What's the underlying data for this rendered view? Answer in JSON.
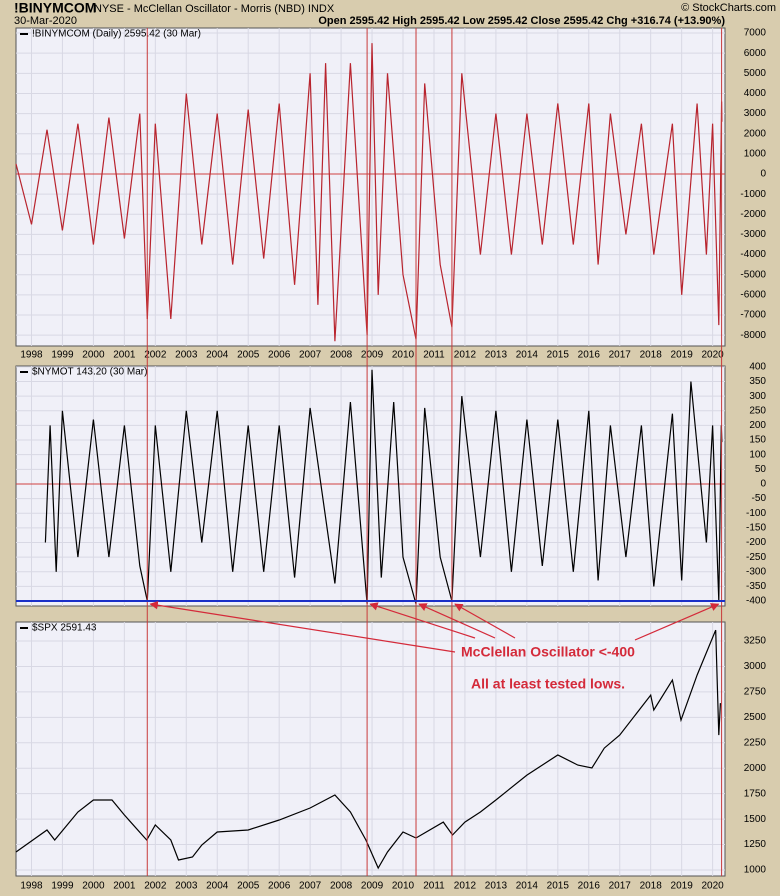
{
  "header": {
    "symbol": "!BINYMCOM",
    "description": "NYSE - McClellan Oscillator - Morris (NBD) INDX",
    "date": "30-Mar-2020",
    "stats": "Open 2595.42 High 2595.42 Low 2595.42 Close 2595.42 Chg +316.74 (+13.90%)",
    "copyright": "© StockCharts.com"
  },
  "chart_data": [
    {
      "type": "line",
      "xlim": [
        1997.5,
        2020.4
      ],
      "ylim": [
        -8540,
        7250
      ],
      "xticks": [
        1998,
        1999,
        2000,
        2001,
        2002,
        2003,
        2004,
        2005,
        2006,
        2007,
        2008,
        2009,
        2010,
        2011,
        2012,
        2013,
        2014,
        2015,
        2016,
        2017,
        2018,
        2019,
        2020
      ],
      "yticks": [
        7000,
        6000,
        5000,
        4000,
        3000,
        2000,
        1000,
        0,
        -1000,
        -2000,
        -3000,
        -4000,
        -5000,
        -6000,
        -7000,
        -8000
      ],
      "zero_line": true,
      "grid": true,
      "series": [
        {
          "name": "!BINYMCOM (Daily) 2595.42 (30 Mar)",
          "color": "#b8242e",
          "x": [
            1997.5,
            1998.0,
            1998.5,
            1999.0,
            1999.5,
            2000.0,
            2000.5,
            2001.0,
            2001.5,
            2001.74,
            2002.0,
            2002.5,
            2003.0,
            2003.5,
            2004.0,
            2004.5,
            2005.0,
            2005.5,
            2006.0,
            2006.5,
            2007.0,
            2007.25,
            2007.5,
            2007.8,
            2008.3,
            2008.84,
            2009.0,
            2009.2,
            2009.5,
            2010.0,
            2010.42,
            2010.7,
            2011.2,
            2011.58,
            2011.9,
            2012.5,
            2013.0,
            2013.5,
            2014.0,
            2014.5,
            2015.0,
            2015.5,
            2016.0,
            2016.3,
            2016.7,
            2017.2,
            2017.7,
            2018.1,
            2018.7,
            2019.0,
            2019.5,
            2019.8,
            2020.0,
            2020.2,
            2020.29,
            2020.3
          ],
          "values": [
            500,
            -2500,
            2200,
            -2800,
            2500,
            -3500,
            2800,
            -3200,
            3000,
            -7200,
            2500,
            -7200,
            4000,
            -3500,
            3000,
            -4500,
            3200,
            -4200,
            3500,
            -5500,
            5000,
            -6500,
            5500,
            -8300,
            5500,
            -8000,
            6500,
            -6000,
            5000,
            -5000,
            -8200,
            4500,
            -4500,
            -7600,
            5000,
            -4000,
            3000,
            -4000,
            3000,
            -3500,
            3500,
            -3500,
            3500,
            -4500,
            3000,
            -3000,
            2500,
            -4000,
            2500,
            -6000,
            3500,
            -4000,
            2500,
            -7500,
            3600,
            2595
          ]
        }
      ]
    },
    {
      "type": "line",
      "xlim": [
        1997.5,
        2020.4
      ],
      "ylim": [
        -417,
        403
      ],
      "yticks": [
        400,
        350,
        300,
        250,
        200,
        150,
        100,
        50,
        0,
        -50,
        -100,
        -150,
        -200,
        -250,
        -300,
        -350,
        -400
      ],
      "zero_line": true,
      "grid": true,
      "hline": -400,
      "hline_color": "#1a2fc8",
      "signal_x": [
        2001.74,
        2008.84,
        2010.42,
        2011.58,
        2020.29
      ],
      "signal_color": "#c83a3a",
      "annotations": [
        "McClellan Oscillator <-400",
        "All at least tested lows."
      ],
      "series": [
        {
          "name": "$NYMOT 143.20 (30 Mar)",
          "color": "#000000",
          "x": [
            1998.45,
            1998.6,
            1998.8,
            1999.0,
            1999.5,
            2000.0,
            2000.5,
            2001.0,
            2001.5,
            2001.74,
            2002.0,
            2002.5,
            2003.0,
            2003.5,
            2004.0,
            2004.5,
            2005.0,
            2005.5,
            2006.0,
            2006.5,
            2007.0,
            2007.8,
            2008.3,
            2008.84,
            2009.0,
            2009.3,
            2009.7,
            2010.0,
            2010.42,
            2010.7,
            2011.2,
            2011.58,
            2011.9,
            2012.5,
            2013.0,
            2013.5,
            2014.0,
            2014.5,
            2015.0,
            2015.5,
            2016.0,
            2016.3,
            2016.7,
            2017.2,
            2017.7,
            2018.1,
            2018.7,
            2019.0,
            2019.3,
            2019.8,
            2020.0,
            2020.2,
            2020.28,
            2020.3
          ],
          "values": [
            -200,
            200,
            -300,
            250,
            -250,
            220,
            -250,
            200,
            -280,
            -400,
            200,
            -300,
            250,
            -200,
            250,
            -300,
            200,
            -300,
            200,
            -320,
            260,
            -340,
            280,
            -410,
            390,
            -320,
            280,
            -250,
            -410,
            260,
            -250,
            -400,
            300,
            -250,
            250,
            -300,
            220,
            -280,
            220,
            -300,
            250,
            -330,
            200,
            -250,
            200,
            -350,
            240,
            -330,
            350,
            -200,
            200,
            -400,
            200,
            143
          ]
        }
      ]
    },
    {
      "type": "line",
      "xlim": [
        1997.5,
        2020.4
      ],
      "ylim": [
        941,
        3437
      ],
      "xticks": [
        1998,
        1999,
        2000,
        2001,
        2002,
        2003,
        2004,
        2005,
        2006,
        2007,
        2008,
        2009,
        2010,
        2011,
        2012,
        2013,
        2014,
        2015,
        2016,
        2017,
        2018,
        2019,
        2020
      ],
      "yticks": [
        3250,
        3000,
        2750,
        2500,
        2250,
        2000,
        1750,
        1500,
        1250,
        1000
      ],
      "grid": true,
      "series": [
        {
          "name": "$SPX 2591.43",
          "color": "#000000",
          "x": [
            1997.5,
            1998.5,
            1998.75,
            1999.5,
            2000.0,
            2000.6,
            2001.0,
            2001.72,
            2002.0,
            2002.5,
            2002.75,
            2003.2,
            2003.5,
            2004.0,
            2005.0,
            2006.0,
            2007.0,
            2007.8,
            2008.3,
            2008.8,
            2009.2,
            2009.5,
            2010.0,
            2010.42,
            2011.3,
            2011.6,
            2012.0,
            2012.5,
            2013.0,
            2014.0,
            2015.0,
            2015.65,
            2016.1,
            2016.5,
            2017.0,
            2018.0,
            2018.1,
            2018.7,
            2018.98,
            2019.5,
            2020.1,
            2020.2,
            2020.25
          ],
          "values": [
            1177,
            1393,
            1295,
            1570,
            1688,
            1688,
            1540,
            1295,
            1442,
            1295,
            1098,
            1128,
            1246,
            1373,
            1393,
            1491,
            1609,
            1737,
            1570,
            1295,
            1020,
            1177,
            1373,
            1314,
            1471,
            1344,
            1471,
            1570,
            1688,
            1933,
            2130,
            2031,
            2002,
            2198,
            2326,
            2719,
            2572,
            2866,
            2473,
            2915,
            3357,
            2326,
            2640
          ]
        }
      ]
    }
  ]
}
